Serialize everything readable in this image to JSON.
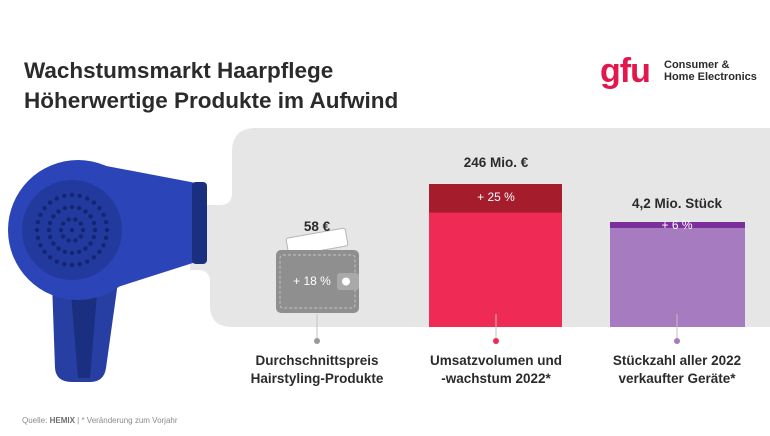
{
  "header": {
    "title_line1": "Wachstumsmarkt Haarpflege",
    "title_line2": "Höherwertige Produkte im Aufwind"
  },
  "logo": {
    "mark": "gfu",
    "line1": "Consumer &",
    "line2": "Home Electronics"
  },
  "chart_data": {
    "type": "bar",
    "categories": [
      "Durchschnittspreis Hairstyling-Produkte",
      "Umsatzvolumen und -wachstum 2022*",
      "Stückzahl aller 2022 verkaufter Geräte*"
    ],
    "values": [
      58,
      246,
      4.2
    ],
    "value_labels": [
      "58 €",
      "246 Mio. €",
      "4,2 Mio. Stück"
    ],
    "growth_pct": [
      18,
      25,
      6
    ],
    "growth_labels": [
      "+ 18 %",
      "+ 25 %",
      "+ 6 %"
    ],
    "category_lines": [
      [
        "Durchschnittspreis",
        "Hairstyling-Produkte"
      ],
      [
        "Umsatzvolumen und",
        "-wachstum 2022*"
      ],
      [
        "Stückzahl aller 2022",
        "verkaufter Geräte*"
      ]
    ],
    "colors": {
      "wallet": "#8f8f8f",
      "bar2_base": "#ee2a55",
      "bar2_growth": "#a51c2c",
      "bar3_base": "#a77bbf",
      "bar3_growth": "#7b2f9c",
      "background_band": "#e6e6e6"
    }
  },
  "footer": {
    "source_label": "Quelle: ",
    "source_name": "HEMIX",
    "note": "| * Veränderung zum Vorjahr"
  }
}
